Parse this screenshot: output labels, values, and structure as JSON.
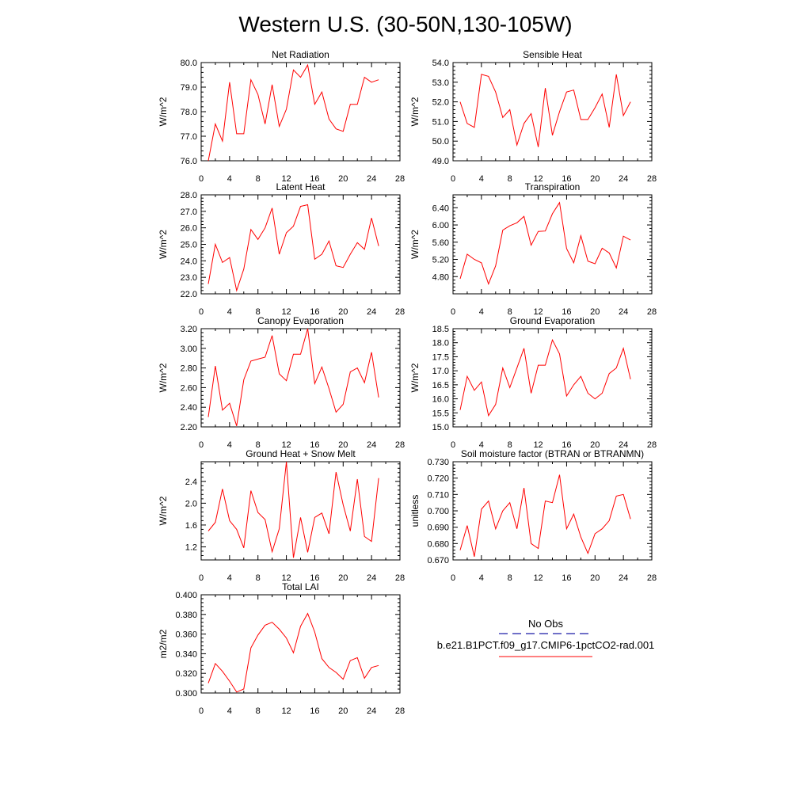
{
  "page": {
    "title": "Western U.S. (30-50N,130-105W)"
  },
  "legend": {
    "obs_label": "No Obs",
    "obs_color": "#1a1aa8",
    "model_label": "b.e21.B1PCT.f09_g17.CMIP6-1pctCO2-rad.001",
    "model_color": "#ff0000"
  },
  "chart_data": [
    {
      "id": "net-radiation",
      "type": "line",
      "title": "Net Radiation",
      "ylabel": "W/m^2",
      "xlim": [
        0,
        28
      ],
      "xticks": [
        0,
        4,
        8,
        12,
        16,
        20,
        24,
        28
      ],
      "ylim": [
        76.0,
        80.0
      ],
      "yticks": [
        76.0,
        77.0,
        78.0,
        79.0,
        80.0
      ],
      "ydec": 1,
      "series": [
        {
          "color": "#ff0000",
          "x": [
            1,
            2,
            3,
            4,
            5,
            6,
            7,
            8,
            9,
            10,
            11,
            12,
            13,
            14,
            15,
            16,
            17,
            18,
            19,
            20,
            21,
            22,
            23,
            24,
            25
          ],
          "y": [
            76.0,
            77.5,
            76.8,
            79.2,
            77.1,
            77.1,
            79.3,
            78.7,
            77.5,
            79.1,
            77.4,
            78.1,
            79.7,
            79.4,
            79.9,
            78.3,
            78.8,
            77.7,
            77.3,
            77.2,
            78.3,
            78.3,
            79.4,
            79.2,
            79.3
          ]
        }
      ]
    },
    {
      "id": "sensible-heat",
      "type": "line",
      "title": "Sensible Heat",
      "ylabel": "W/m^2",
      "xlim": [
        0,
        28
      ],
      "xticks": [
        0,
        4,
        8,
        12,
        16,
        20,
        24,
        28
      ],
      "ylim": [
        49.0,
        54.0
      ],
      "yticks": [
        49.0,
        50.0,
        51.0,
        52.0,
        53.0,
        54.0
      ],
      "ydec": 1,
      "series": [
        {
          "color": "#ff0000",
          "x": [
            1,
            2,
            3,
            4,
            5,
            6,
            7,
            8,
            9,
            10,
            11,
            12,
            13,
            14,
            15,
            16,
            17,
            18,
            19,
            20,
            21,
            22,
            23,
            24,
            25
          ],
          "y": [
            52.0,
            50.9,
            50.7,
            53.4,
            53.3,
            52.5,
            51.2,
            51.6,
            49.8,
            50.9,
            51.4,
            49.7,
            52.7,
            50.3,
            51.5,
            52.5,
            52.6,
            51.1,
            51.1,
            51.7,
            52.4,
            50.7,
            53.4,
            51.3,
            52.0
          ]
        }
      ]
    },
    {
      "id": "latent-heat",
      "type": "line",
      "title": "Latent Heat",
      "ylabel": "W/m^2",
      "xlim": [
        0,
        28
      ],
      "xticks": [
        0,
        4,
        8,
        12,
        16,
        20,
        24,
        28
      ],
      "ylim": [
        22.0,
        28.0
      ],
      "yticks": [
        22.0,
        23.0,
        24.0,
        25.0,
        26.0,
        27.0,
        28.0
      ],
      "ydec": 1,
      "series": [
        {
          "color": "#ff0000",
          "x": [
            1,
            2,
            3,
            4,
            5,
            6,
            7,
            8,
            9,
            10,
            11,
            12,
            13,
            14,
            15,
            16,
            17,
            18,
            19,
            20,
            21,
            22,
            23,
            24,
            25
          ],
          "y": [
            22.6,
            25.0,
            23.9,
            24.2,
            22.2,
            23.5,
            25.9,
            25.3,
            26.0,
            27.2,
            24.4,
            25.7,
            26.1,
            27.3,
            27.4,
            24.1,
            24.4,
            25.2,
            23.7,
            23.6,
            24.4,
            25.1,
            24.7,
            26.6,
            24.9
          ]
        }
      ]
    },
    {
      "id": "transpiration",
      "type": "line",
      "title": "Transpiration",
      "ylabel": "W/m^2",
      "xlim": [
        0,
        28
      ],
      "xticks": [
        0,
        4,
        8,
        12,
        16,
        20,
        24,
        28
      ],
      "ylim": [
        4.4,
        6.7
      ],
      "yticks": [
        4.8,
        5.2,
        5.6,
        6.0,
        6.4
      ],
      "ydec": 2,
      "series": [
        {
          "color": "#ff0000",
          "x": [
            1,
            2,
            3,
            4,
            5,
            6,
            7,
            8,
            9,
            10,
            11,
            12,
            13,
            14,
            15,
            16,
            17,
            18,
            19,
            20,
            21,
            22,
            23,
            24,
            25
          ],
          "y": [
            4.75,
            5.32,
            5.2,
            5.12,
            4.63,
            5.05,
            5.88,
            5.98,
            6.05,
            6.2,
            5.53,
            5.85,
            5.86,
            6.26,
            6.52,
            5.45,
            5.12,
            5.75,
            5.16,
            5.1,
            5.46,
            5.35,
            5.0,
            5.74,
            5.65
          ]
        }
      ]
    },
    {
      "id": "canopy-evaporation",
      "type": "line",
      "title": "Canopy Evaporation",
      "ylabel": "W/m^2",
      "xlim": [
        0,
        28
      ],
      "xticks": [
        0,
        4,
        8,
        12,
        16,
        20,
        24,
        28
      ],
      "ylim": [
        2.2,
        3.2
      ],
      "yticks": [
        2.2,
        2.4,
        2.6,
        2.8,
        3.0,
        3.2
      ],
      "ydec": 2,
      "series": [
        {
          "color": "#ff0000",
          "x": [
            1,
            2,
            3,
            4,
            5,
            6,
            7,
            8,
            9,
            10,
            11,
            12,
            13,
            14,
            15,
            16,
            17,
            18,
            19,
            20,
            21,
            22,
            23,
            24,
            25
          ],
          "y": [
            2.3,
            2.82,
            2.37,
            2.44,
            2.21,
            2.68,
            2.87,
            2.89,
            2.91,
            3.13,
            2.74,
            2.67,
            2.94,
            2.94,
            3.2,
            2.64,
            2.81,
            2.59,
            2.35,
            2.43,
            2.76,
            2.8,
            2.65,
            2.96,
            2.5
          ]
        }
      ]
    },
    {
      "id": "ground-evaporation",
      "type": "line",
      "title": "Ground Evaporation",
      "ylabel": "W/m^2",
      "xlim": [
        0,
        28
      ],
      "xticks": [
        0,
        4,
        8,
        12,
        16,
        20,
        24,
        28
      ],
      "ylim": [
        15.0,
        18.5
      ],
      "yticks": [
        15.0,
        15.5,
        16.0,
        16.5,
        17.0,
        17.5,
        18.0,
        18.5
      ],
      "ydec": 1,
      "series": [
        {
          "color": "#ff0000",
          "x": [
            1,
            2,
            3,
            4,
            5,
            6,
            7,
            8,
            9,
            10,
            11,
            12,
            13,
            14,
            15,
            16,
            17,
            18,
            19,
            20,
            21,
            22,
            23,
            24,
            25
          ],
          "y": [
            15.6,
            16.8,
            16.3,
            16.6,
            15.4,
            15.8,
            17.1,
            16.4,
            17.1,
            17.8,
            16.2,
            17.2,
            17.2,
            18.1,
            17.6,
            16.1,
            16.5,
            16.8,
            16.2,
            16.0,
            16.2,
            16.9,
            17.1,
            17.8,
            16.7
          ]
        }
      ]
    },
    {
      "id": "ground-heat-snow-melt",
      "type": "line",
      "title": "Ground Heat + Snow Melt",
      "ylabel": "W/m^2",
      "xlim": [
        0,
        28
      ],
      "xticks": [
        0,
        4,
        8,
        12,
        16,
        20,
        24,
        28
      ],
      "ylim": [
        0.96,
        2.76
      ],
      "yticks": [
        1.2,
        1.6,
        2.0,
        2.4
      ],
      "ydec": 1,
      "series": [
        {
          "color": "#ff0000",
          "x": [
            1,
            2,
            3,
            4,
            5,
            6,
            7,
            8,
            9,
            10,
            11,
            12,
            13,
            14,
            15,
            16,
            17,
            18,
            19,
            20,
            21,
            22,
            23,
            24,
            25
          ],
          "y": [
            1.49,
            1.65,
            2.26,
            1.68,
            1.52,
            1.18,
            2.23,
            1.83,
            1.7,
            1.11,
            1.53,
            2.76,
            1.0,
            1.74,
            1.1,
            1.74,
            1.82,
            1.44,
            2.57,
            1.97,
            1.49,
            2.44,
            1.39,
            1.3,
            2.46
          ]
        }
      ]
    },
    {
      "id": "soil-moisture-factor",
      "type": "line",
      "title": "Soil moisture factor (BTRAN or BTRANMN)",
      "ylabel": "unitless",
      "xlim": [
        0,
        28
      ],
      "xticks": [
        0,
        4,
        8,
        12,
        16,
        20,
        24,
        28
      ],
      "ylim": [
        0.67,
        0.73
      ],
      "yticks": [
        0.67,
        0.68,
        0.69,
        0.7,
        0.71,
        0.72,
        0.73
      ],
      "ydec": 3,
      "series": [
        {
          "color": "#ff0000",
          "x": [
            1,
            2,
            3,
            4,
            5,
            6,
            7,
            8,
            9,
            10,
            11,
            12,
            13,
            14,
            15,
            16,
            17,
            18,
            19,
            20,
            21,
            22,
            23,
            24,
            25
          ],
          "y": [
            0.676,
            0.691,
            0.672,
            0.701,
            0.706,
            0.689,
            0.7,
            0.705,
            0.689,
            0.714,
            0.68,
            0.677,
            0.706,
            0.705,
            0.722,
            0.689,
            0.698,
            0.684,
            0.674,
            0.686,
            0.689,
            0.694,
            0.709,
            0.71,
            0.695
          ]
        }
      ]
    },
    {
      "id": "total-lai",
      "type": "line",
      "title": "Total LAI",
      "ylabel": "m2/m2",
      "xlim": [
        0,
        28
      ],
      "xticks": [
        0,
        4,
        8,
        12,
        16,
        20,
        24,
        28
      ],
      "ylim": [
        0.3,
        0.4
      ],
      "yticks": [
        0.3,
        0.32,
        0.34,
        0.36,
        0.38,
        0.4
      ],
      "ydec": 3,
      "series": [
        {
          "color": "#ff0000",
          "x": [
            1,
            2,
            3,
            4,
            5,
            6,
            7,
            8,
            9,
            10,
            11,
            12,
            13,
            14,
            15,
            16,
            17,
            18,
            19,
            20,
            21,
            22,
            23,
            24,
            25
          ],
          "y": [
            0.31,
            0.33,
            0.322,
            0.312,
            0.301,
            0.304,
            0.346,
            0.359,
            0.369,
            0.372,
            0.365,
            0.356,
            0.341,
            0.368,
            0.381,
            0.362,
            0.335,
            0.326,
            0.321,
            0.314,
            0.333,
            0.336,
            0.315,
            0.326,
            0.328
          ]
        }
      ]
    }
  ]
}
